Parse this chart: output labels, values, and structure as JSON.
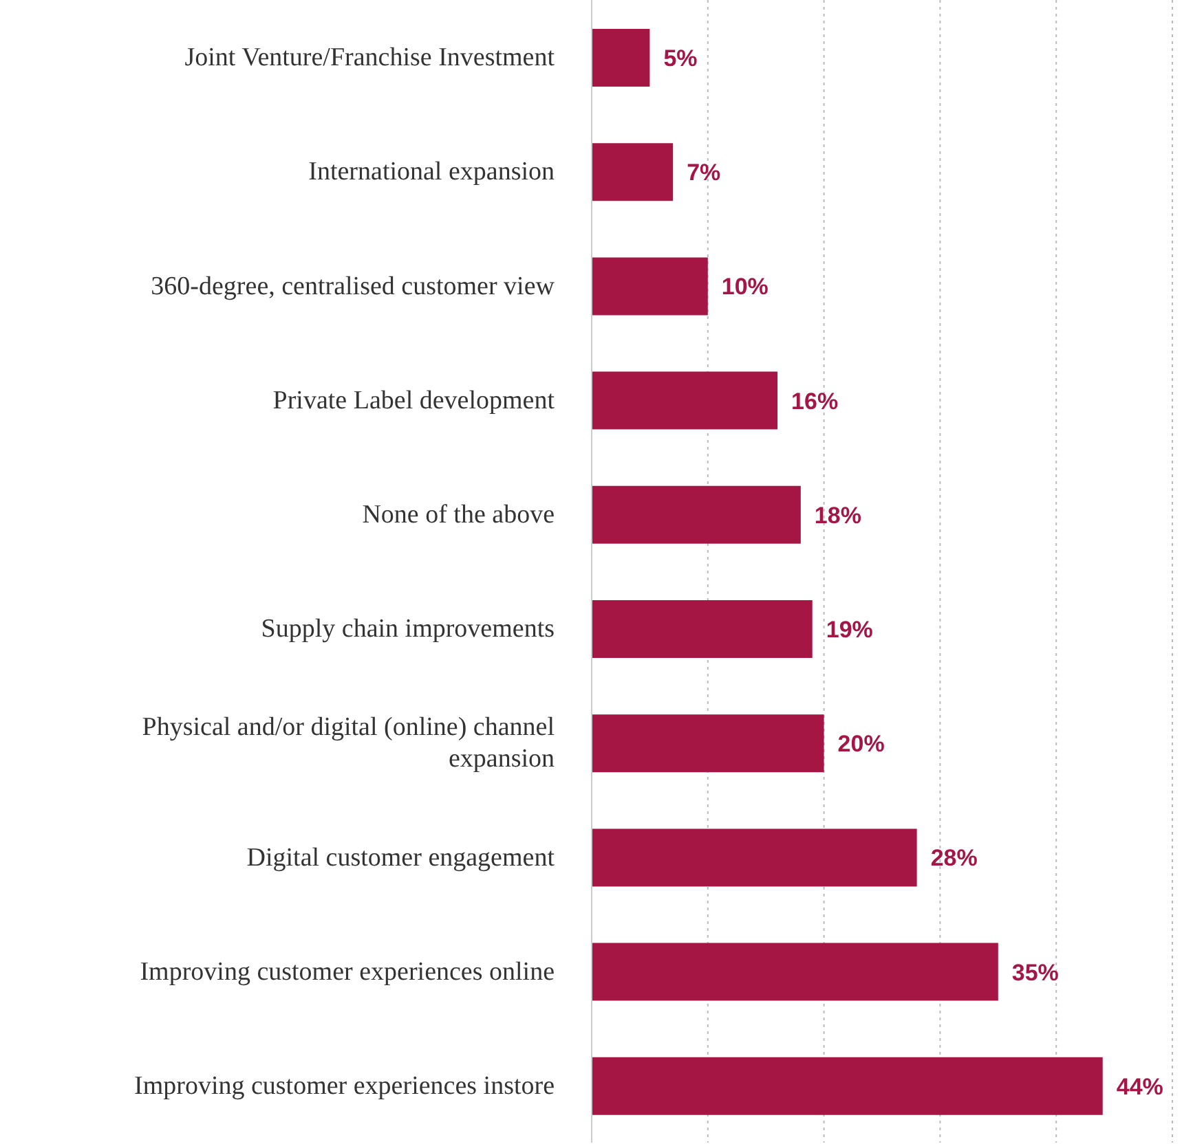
{
  "chart_data": {
    "type": "bar",
    "orientation": "horizontal",
    "categories": [
      "Joint Venture/Franchise Investment",
      "International expansion",
      "360-degree, centralised customer view",
      "Private Label development",
      "None of the above",
      "Supply chain improvements",
      "Physical and/or digital (online) channel expansion",
      "Digital customer engagement",
      "Improving customer experiences online",
      "Improving customer experiences instore"
    ],
    "values": [
      5,
      7,
      10,
      16,
      18,
      19,
      20,
      28,
      35,
      44
    ],
    "value_labels": [
      "5%",
      "7%",
      "10%",
      "16%",
      "18%",
      "19%",
      "20%",
      "28%",
      "35%",
      "44%"
    ],
    "color": "#a51645",
    "xlim": [
      0,
      50
    ],
    "grid": "x",
    "tick_labels": "y",
    "legend": false
  }
}
